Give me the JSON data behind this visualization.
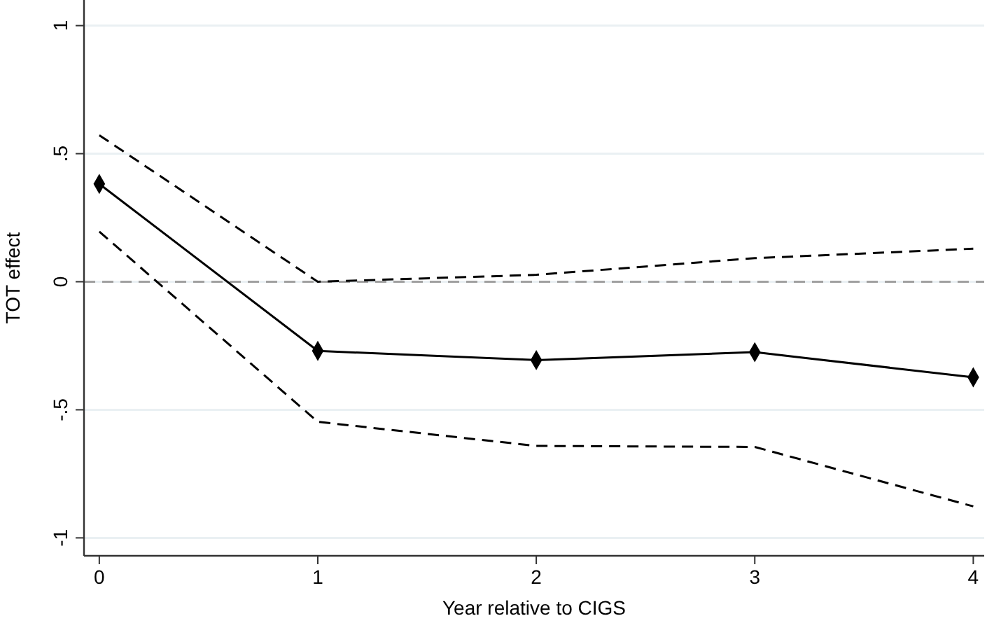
{
  "chart_data": {
    "type": "line",
    "xlabel": "Year relative to CIGS",
    "ylabel": "TOT effect",
    "x": [
      0,
      1,
      2,
      3,
      4
    ],
    "xlim": [
      -0.07,
      4.05
    ],
    "xticks": [
      0,
      1,
      2,
      3,
      4
    ],
    "ylim": [
      -1.07,
      1.1
    ],
    "yticks": [
      {
        "value": -1,
        "label": "-1"
      },
      {
        "value": -0.5,
        "label": "-.5"
      },
      0,
      {
        "value": 0.5,
        "label": ".5"
      },
      1
    ],
    "grid": "y",
    "ref_lines": [
      {
        "axis": "y",
        "value": 0,
        "color": "#a0a0a0",
        "line_style": "dashed"
      }
    ],
    "series": [
      {
        "color": "#000000",
        "values": [
          0.382,
          -0.27,
          -0.306,
          -0.275,
          -0.373
        ],
        "marker": "diamond",
        "line_style": "solid"
      },
      {
        "color": "#000000",
        "values": [
          0.572,
          0.0,
          0.027,
          0.092,
          0.129
        ],
        "marker": "none",
        "line_style": "dashed"
      },
      {
        "color": "#000000",
        "values": [
          0.196,
          -0.547,
          -0.641,
          -0.645,
          -0.877
        ],
        "marker": "none",
        "line_style": "dashed"
      }
    ]
  }
}
